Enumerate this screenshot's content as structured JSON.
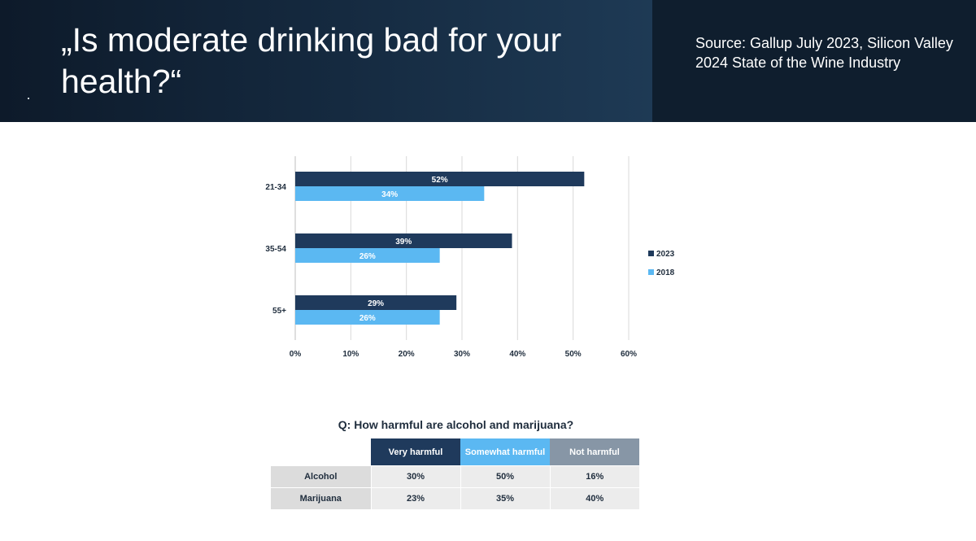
{
  "header": {
    "title": "„Is moderate drinking bad for your health?“",
    "source": "Source: Gallup July 2023, Silicon Valley 2024 State of the Wine Industry"
  },
  "chart_data": {
    "type": "bar",
    "orientation": "horizontal",
    "categories": [
      "21-34",
      "35-54",
      "55+"
    ],
    "series": [
      {
        "name": "2023",
        "values": [
          52,
          39,
          29
        ],
        "labels": [
          "52%",
          "39%",
          "29%"
        ],
        "color": "#1f3a5c"
      },
      {
        "name": "2018",
        "values": [
          34,
          26,
          26
        ],
        "labels": [
          "34%",
          "26%",
          "26%"
        ],
        "color": "#5bb8f2"
      }
    ],
    "xticks": [
      "0%",
      "10%",
      "20%",
      "30%",
      "40%",
      "50%",
      "60%"
    ],
    "xlim": [
      0,
      60
    ],
    "grid": true,
    "legend": "right"
  },
  "table": {
    "title": "Q: How harmful are alcohol and marijuana?",
    "columns": [
      "Very harmful",
      "Somewhat harmful",
      "Not harmful"
    ],
    "column_colors": [
      "#1f3a5c",
      "#5bb8f2",
      "#8796a6"
    ],
    "rows": [
      {
        "label": "Alcohol",
        "values": [
          "30%",
          "50%",
          "16%"
        ]
      },
      {
        "label": "Marijuana",
        "values": [
          "23%",
          "35%",
          "40%"
        ]
      }
    ]
  }
}
